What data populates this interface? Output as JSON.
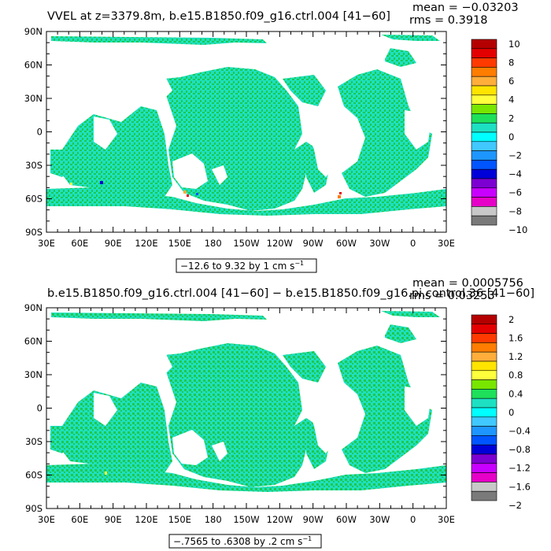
{
  "panels": [
    {
      "title": "VVEL at z=3379.8m, b.e15.B1850.f09_g16.ctrl.004 [41−60]",
      "mean_label": "mean = −0.03203",
      "rms_label": "rms = 0.3918",
      "range_label": "−12.6 to 9.32 by 1 cm s",
      "range_unit_exp": "−1",
      "colorbar_labels": [
        "10",
        "8",
        "6",
        "4",
        "2",
        "0",
        "−2",
        "−4",
        "−6",
        "−8",
        "−10"
      ]
    },
    {
      "title": "b.e15.B1850.f09_g16.ctrl.004 [41−60] − b.e15.B1850.f09_g16.pi.control.36 [41−60]",
      "mean_label": "mean = 0.0005756",
      "rms_label": "rms = 0.03253",
      "range_label": "−.7565 to .6308 by .2 cm s",
      "range_unit_exp": "−1",
      "colorbar_labels": [
        "2",
        "1.6",
        "1.2",
        "0.8",
        "0.4",
        "0",
        "−0.4",
        "−0.8",
        "−1.2",
        "−1.6",
        "−2"
      ]
    }
  ],
  "lat_labels": [
    "90N",
    "60N",
    "30N",
    "0",
    "30S",
    "60S",
    "90S"
  ],
  "lon_labels": [
    "30E",
    "60E",
    "90E",
    "120E",
    "150E",
    "180",
    "150W",
    "120W",
    "90W",
    "60W",
    "30W",
    "0",
    "30E"
  ],
  "colors": {
    "ocean_fill": "#1de0c2",
    "ocean_speckle": "#20c84a",
    "land": "#ffffff",
    "colorbar": [
      "#b40000",
      "#e40000",
      "#ff3a00",
      "#ff7d00",
      "#ffae3c",
      "#ffe400",
      "#ffff3c",
      "#78e600",
      "#1ee05a",
      "#1de0c2",
      "#00ffff",
      "#40c8ff",
      "#1e96ff",
      "#0055ff",
      "#0000d8",
      "#7d00d2",
      "#c800ff",
      "#e600c8",
      "#c8c8c8",
      "#7a7a7a"
    ]
  }
}
